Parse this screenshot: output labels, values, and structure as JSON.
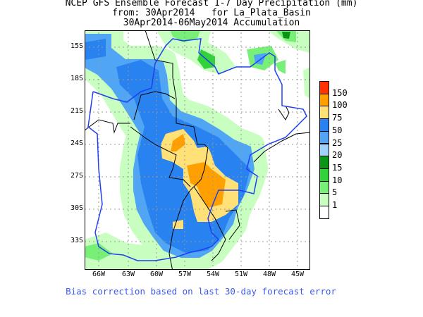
{
  "title": {
    "line1": "NCEP GFS Ensemble Forecast 1-7 Day Precipitation (mm)",
    "line2": "from: 30Apr2014   for La_Plata_Basin",
    "line3": "30Apr2014-06May2014 Accumulation"
  },
  "map": {
    "lat_labels": [
      "15S",
      "18S",
      "21S",
      "24S",
      "27S",
      "30S",
      "33S"
    ],
    "lon_labels": [
      "66W",
      "63W",
      "60W",
      "57W",
      "54W",
      "51W",
      "48W",
      "45W"
    ]
  },
  "legend": {
    "labels": [
      "150",
      "100",
      "75",
      "50",
      "25",
      "20",
      "15",
      "10",
      "5",
      "1"
    ],
    "colors": [
      "#ff3200",
      "#ffa000",
      "#ffe178",
      "#2882f0",
      "#50a5f5",
      "#a0d2fa",
      "#0a9614",
      "#32d23c",
      "#78f078",
      "#c8ffc0",
      "#ffffff"
    ]
  },
  "note": "Bias correction based on last 30-day forecast error"
}
